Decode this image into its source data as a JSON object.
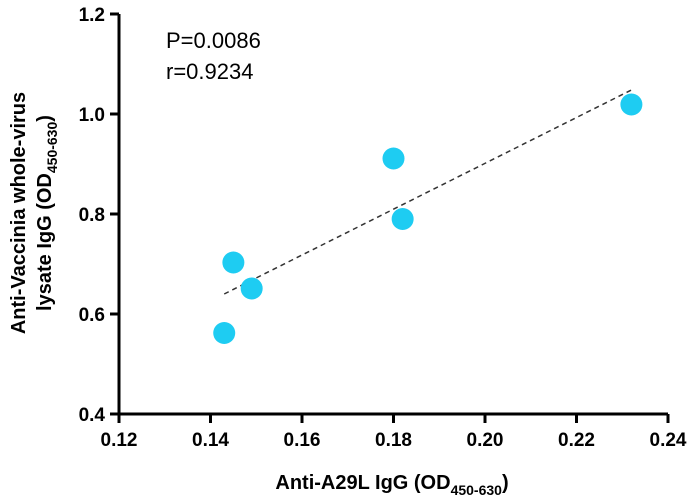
{
  "chart_data": {
    "type": "scatter",
    "title": "",
    "xlabel": {
      "main": "Anti-A29L  IgG (OD",
      "sub": "450-630",
      "tail": ")"
    },
    "ylabel": {
      "line1": "Anti-Vaccinia whole-virus",
      "line2_main": "lysate IgG (OD",
      "line2_sub": "450-630",
      "line2_tail": ")"
    },
    "xlim": [
      0.12,
      0.24
    ],
    "ylim": [
      0.4,
      1.2
    ],
    "xticks": [
      "0.12",
      "0.14",
      "0.16",
      "0.18",
      "0.20",
      "0.22",
      "0.24"
    ],
    "yticks": [
      "0.4",
      "0.6",
      "0.8",
      "1.0",
      "1.2"
    ],
    "points": [
      {
        "x": 0.143,
        "y": 0.562
      },
      {
        "x": 0.145,
        "y": 0.703
      },
      {
        "x": 0.149,
        "y": 0.651
      },
      {
        "x": 0.18,
        "y": 0.911
      },
      {
        "x": 0.182,
        "y": 0.79
      },
      {
        "x": 0.232,
        "y": 1.019
      }
    ],
    "fit_line": {
      "x": [
        0.143,
        0.232
      ],
      "y": [
        0.64,
        1.048
      ],
      "style": "dashed"
    },
    "annotations": {
      "p_value": "P=0.0086",
      "r_value": "r=0.9234"
    },
    "colors": {
      "points": "#1ECCF2",
      "axes": "#000000",
      "fit": "#333333"
    }
  }
}
